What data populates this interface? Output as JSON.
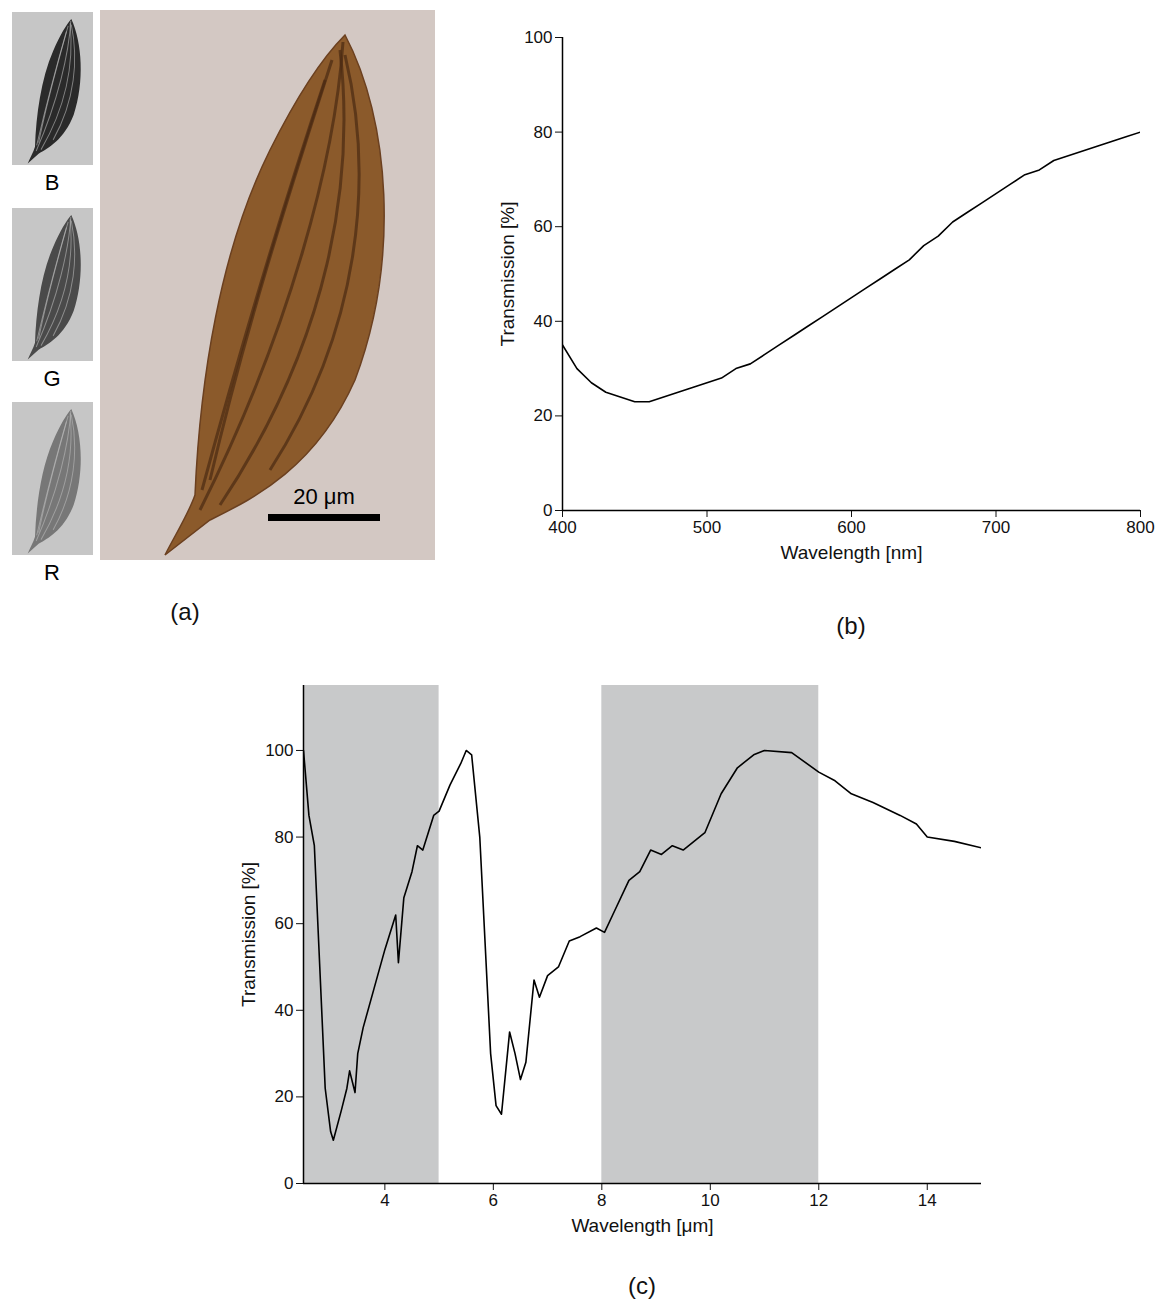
{
  "chart_data": [
    {
      "type": "image",
      "title": "(a)",
      "channels": [
        "B",
        "G",
        "R"
      ],
      "scale_bar": "20 μm"
    },
    {
      "type": "line",
      "title": "(b)",
      "x_label": "Wavelength [nm]",
      "y_label": "Transmission [%]",
      "x": [
        400,
        410,
        420,
        430,
        440,
        450,
        460,
        470,
        480,
        490,
        500,
        510,
        520,
        530,
        540,
        550,
        560,
        570,
        580,
        590,
        600,
        610,
        620,
        630,
        640,
        650,
        660,
        670,
        680,
        690,
        700,
        710,
        720,
        730,
        740,
        750,
        760,
        770,
        780,
        790,
        800
      ],
      "values": [
        35,
        30,
        27,
        25,
        24,
        23,
        23,
        24,
        25,
        26,
        27,
        28,
        30,
        31,
        33,
        35,
        37,
        39,
        41,
        43,
        45,
        47,
        49,
        51,
        53,
        56,
        58,
        61,
        63,
        65,
        67,
        69,
        71,
        72,
        74,
        75,
        76,
        77,
        78,
        79,
        80
      ],
      "color": "#000000",
      "xlim": [
        400,
        800
      ],
      "xticks": [
        400,
        500,
        600,
        700,
        800
      ],
      "ylim": [
        0,
        100
      ],
      "yticks": [
        0,
        20,
        40,
        60,
        80,
        100
      ]
    },
    {
      "type": "line",
      "title": "(c)",
      "x_label": "Wavelength [μm]",
      "y_label": "Transmission [%]",
      "x": [
        2.5,
        2.6,
        2.7,
        2.8,
        2.9,
        3.0,
        3.05,
        3.2,
        3.3,
        3.35,
        3.45,
        3.5,
        3.6,
        3.8,
        4.0,
        4.2,
        4.25,
        4.35,
        4.5,
        4.6,
        4.7,
        4.9,
        5.0,
        5.2,
        5.4,
        5.5,
        5.6,
        5.75,
        5.85,
        5.95,
        6.05,
        6.15,
        6.3,
        6.4,
        6.5,
        6.6,
        6.75,
        6.85,
        7.0,
        7.2,
        7.4,
        7.6,
        7.9,
        8.05,
        8.2,
        8.5,
        8.7,
        8.9,
        9.1,
        9.3,
        9.5,
        9.7,
        9.9,
        10.2,
        10.5,
        10.8,
        11.0,
        11.5,
        12.0,
        12.3,
        12.6,
        13.0,
        13.5,
        13.8,
        14.0,
        14.5,
        15.0
      ],
      "values": [
        100,
        85,
        78,
        50,
        22,
        12,
        10,
        17,
        22,
        26,
        21,
        30,
        36,
        45,
        54,
        62,
        51,
        66,
        72,
        78,
        77,
        85,
        86,
        92,
        97,
        100,
        99,
        80,
        55,
        30,
        18,
        16,
        35,
        30,
        24,
        28,
        47,
        43,
        48,
        50,
        56,
        57,
        59,
        58,
        62,
        70,
        72,
        77,
        76,
        78,
        77,
        79,
        81,
        90,
        96,
        99,
        100,
        99.5,
        95,
        93,
        90,
        88,
        85,
        83,
        80,
        79,
        77.5
      ],
      "color": "#000000",
      "bands": [
        [
          2.5,
          5
        ],
        [
          8,
          12
        ]
      ],
      "xlim": [
        2.5,
        15
      ],
      "xticks": [
        4,
        6,
        8,
        10,
        12,
        14
      ],
      "ylim": [
        0,
        115
      ],
      "yticks": [
        0,
        20,
        40,
        60,
        80,
        100
      ]
    }
  ]
}
